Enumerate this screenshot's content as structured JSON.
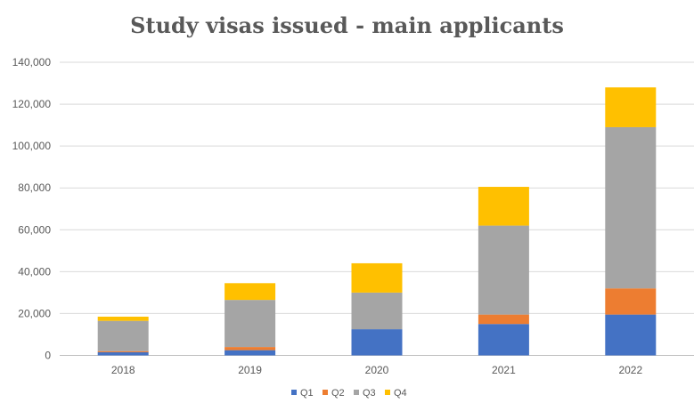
{
  "chart_data": {
    "type": "bar",
    "stacked": true,
    "title": "Study visas issued - main applicants",
    "categories": [
      "2018",
      "2019",
      "2020",
      "2021",
      "2022"
    ],
    "series": [
      {
        "name": "Q1",
        "color": "#4472C4",
        "values": [
          1500,
          2500,
          12500,
          15000,
          19500
        ]
      },
      {
        "name": "Q2",
        "color": "#ED7D31",
        "values": [
          500,
          1500,
          0,
          4500,
          12500
        ]
      },
      {
        "name": "Q3",
        "color": "#A5A5A5",
        "values": [
          14500,
          22500,
          17500,
          42500,
          77000
        ]
      },
      {
        "name": "Q4",
        "color": "#FFC000",
        "values": [
          2000,
          8000,
          14000,
          18500,
          19000
        ]
      }
    ],
    "yticks": [
      "0",
      "20,000",
      "40,000",
      "60,000",
      "80,000",
      "100,000",
      "120,000",
      "140,000"
    ],
    "ylim": [
      0,
      140000
    ],
    "grid": true,
    "legend": "bottom",
    "xlabel": "",
    "ylabel": ""
  }
}
